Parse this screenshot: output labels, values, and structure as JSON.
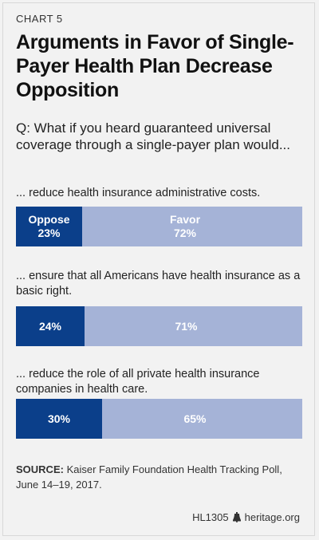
{
  "chart_label": "CHART 5",
  "title": "Arguments in Favor of Single-Payer Health Plan Decrease Opposition",
  "question": "Q: What if you heard guaranteed universal coverage through a single-payer plan would...",
  "chart_data": {
    "type": "bar",
    "orientation": "horizontal-stacked",
    "categories": [
      "... reduce health insurance administrative costs.",
      "... ensure that all Americans have health insurance as a basic right.",
      "... reduce the role of all private health insurance companies in health care."
    ],
    "series": [
      {
        "name": "Oppose",
        "values": [
          23,
          24,
          30
        ],
        "labels": [
          "23%",
          "24%",
          "30%"
        ]
      },
      {
        "name": "Favor",
        "values": [
          72,
          71,
          65
        ],
        "labels": [
          "72%",
          "71%",
          "65%"
        ]
      }
    ],
    "xlim": [
      0,
      100
    ],
    "legend": "inline-first-bar",
    "colors": {
      "oppose": "#0b3f8a",
      "favor": "#a5b3d7",
      "remainder": "#a5b3d7"
    }
  },
  "source": {
    "label": "SOURCE:",
    "text": "Kaiser Family Foundation Health Tracking Poll, June 14–19, 2017."
  },
  "footer": {
    "code": "HL1305",
    "site": "heritage.org",
    "icon": "liberty-bell-icon"
  }
}
